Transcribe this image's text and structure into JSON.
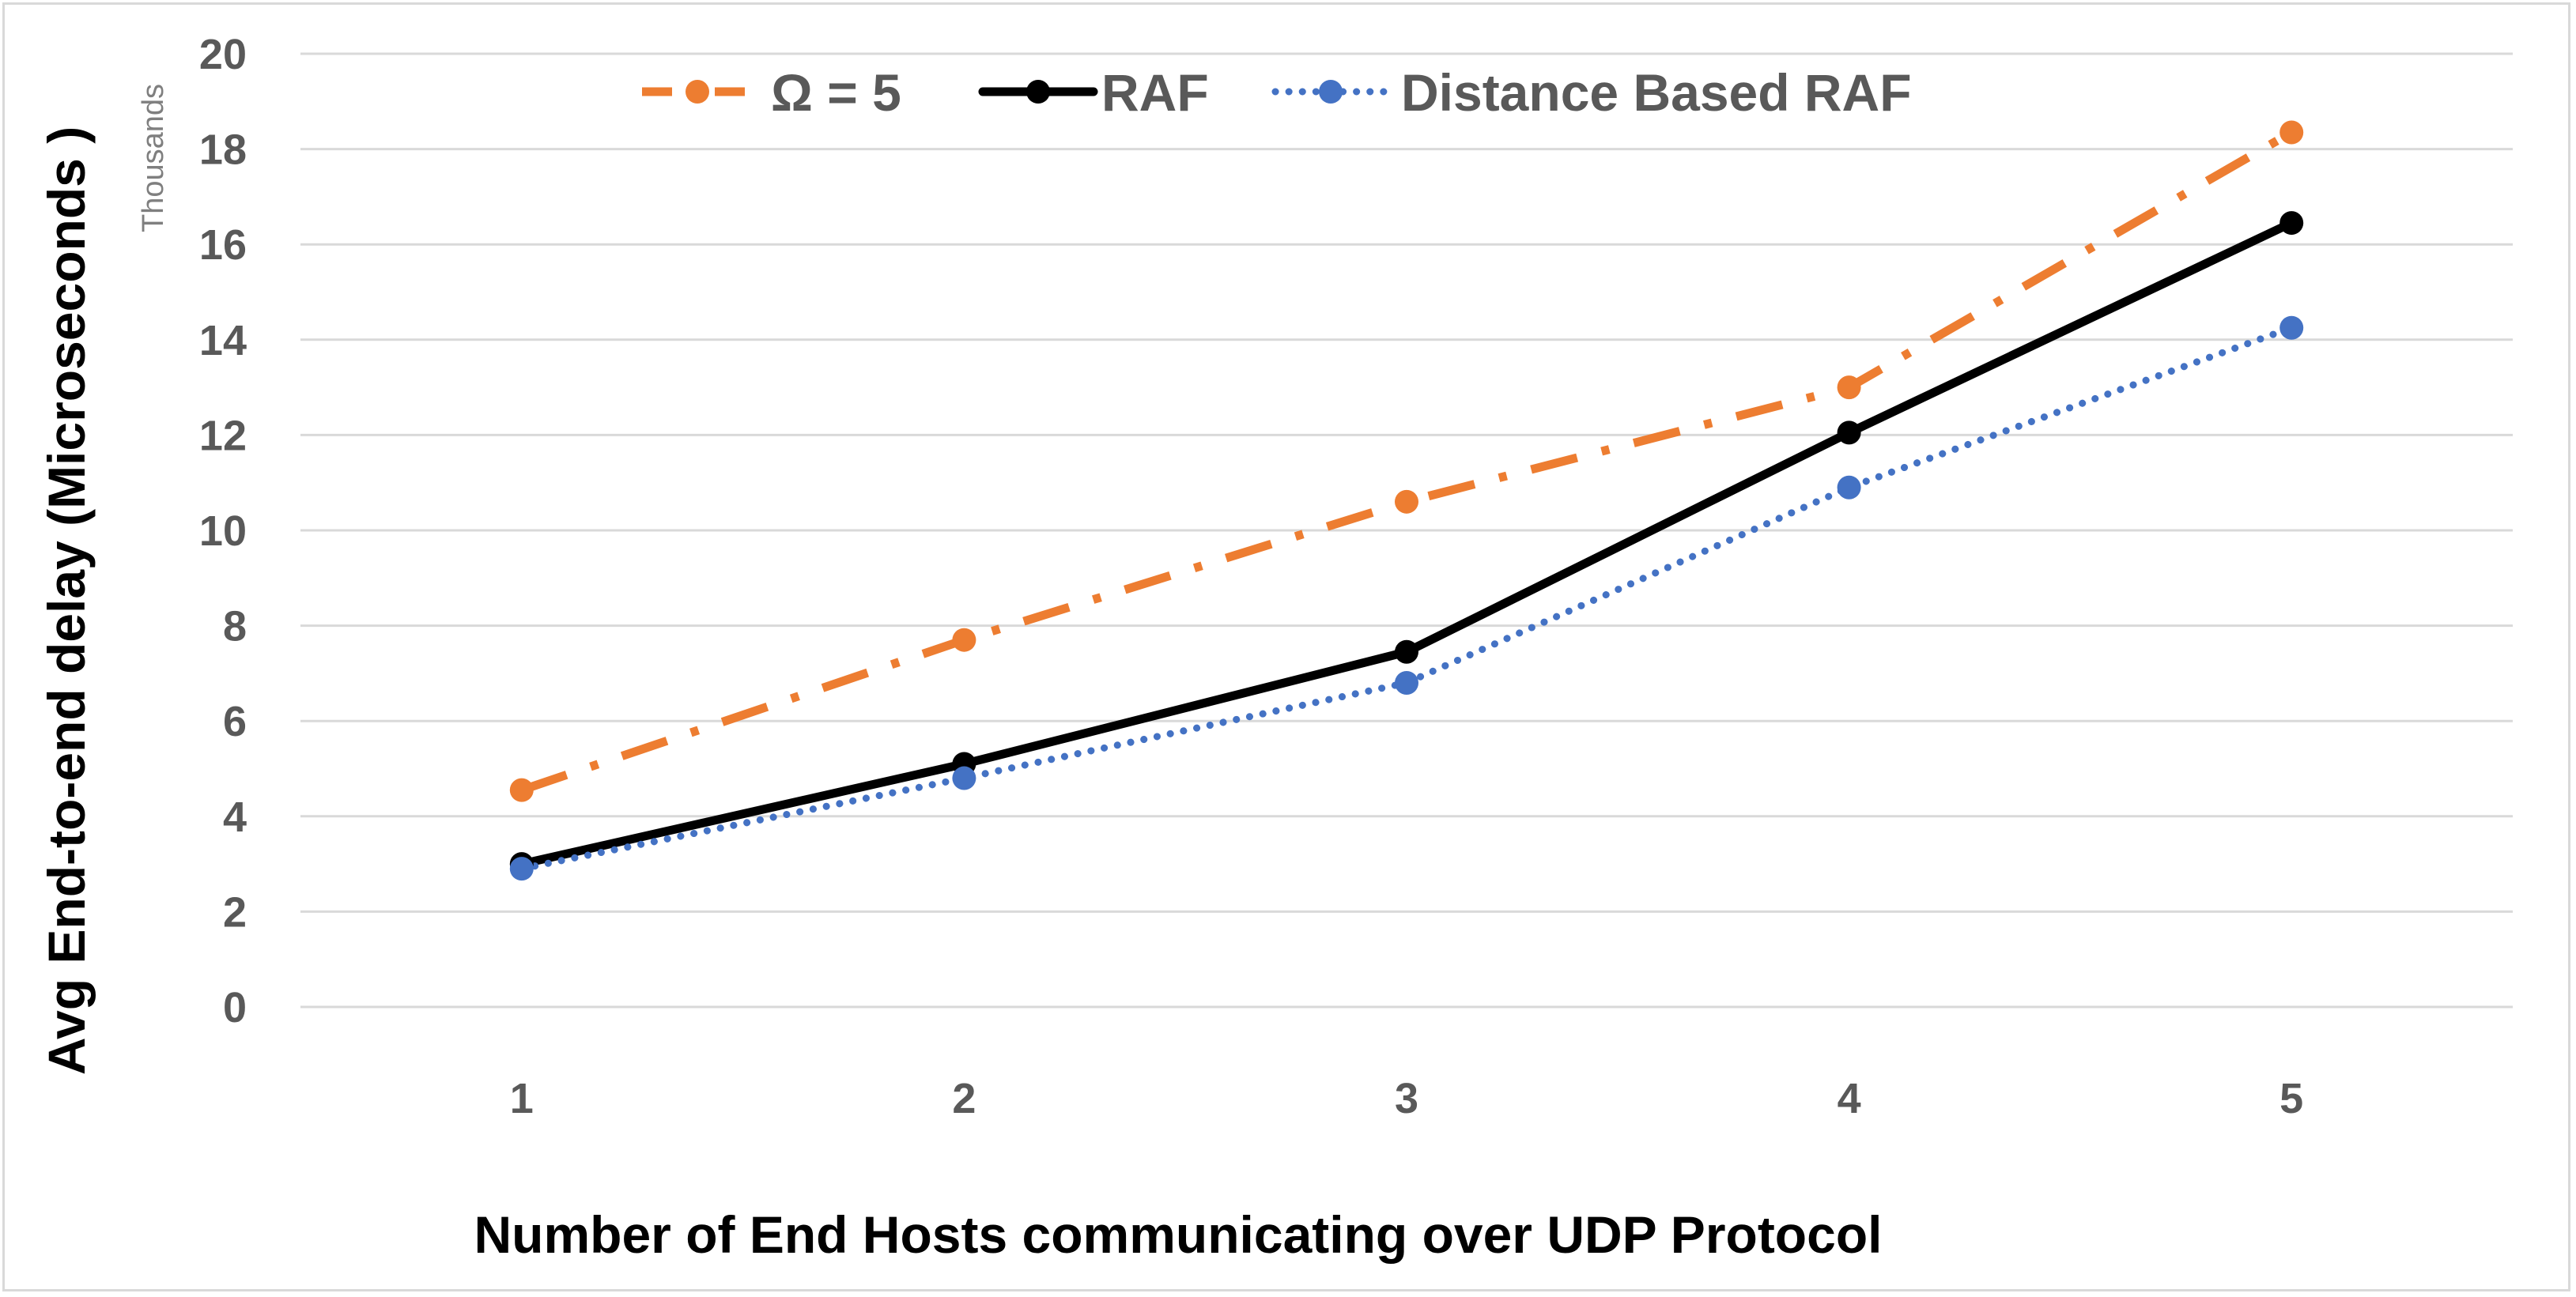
{
  "chart_data": {
    "type": "line",
    "title": "",
    "categories": [
      "1",
      "2",
      "3",
      "4",
      "5"
    ],
    "xlabel": "Number of End Hosts communicating over UDP  Protocol",
    "ylabel": "Avg End-to-end delay (Microseconds )",
    "yunits": "Thousands",
    "ylim": [
      0,
      20
    ],
    "yticks": [
      "0",
      "2",
      "4",
      "6",
      "8",
      "10",
      "12",
      "14",
      "16",
      "18",
      "20"
    ],
    "grid": true,
    "legend_position": "top",
    "series": [
      {
        "name": "Ω = 5",
        "values": [
          4.55,
          7.7,
          10.6,
          13.0,
          18.35
        ],
        "color": "#ED7D31",
        "style": "dashdot"
      },
      {
        "name": "RAF",
        "values": [
          3.0,
          5.1,
          7.45,
          12.05,
          16.45
        ],
        "color": "#000000",
        "style": "solid"
      },
      {
        "name": "Distance Based RAF",
        "values": [
          2.9,
          4.8,
          6.8,
          10.9,
          14.25
        ],
        "color": "#4472C4",
        "style": "dotted"
      }
    ]
  }
}
